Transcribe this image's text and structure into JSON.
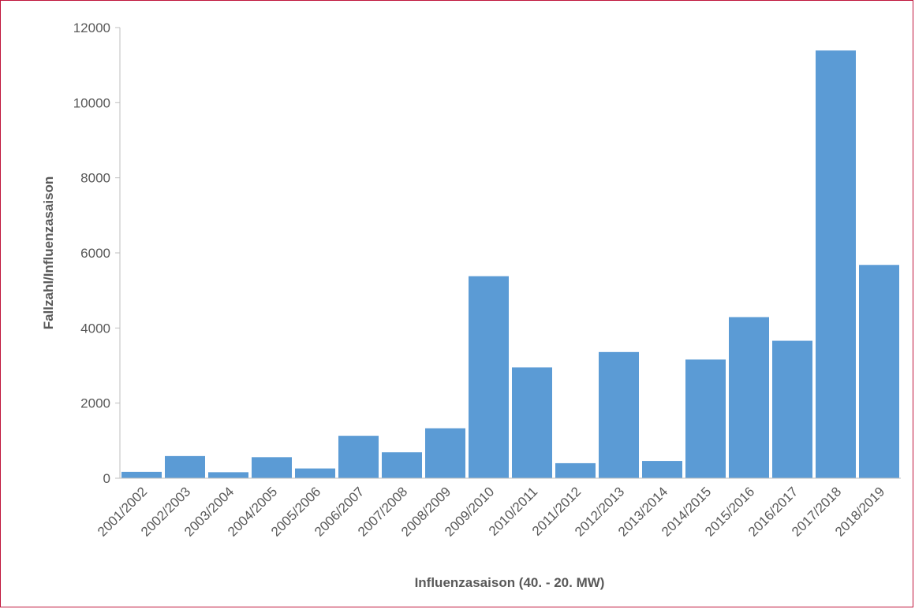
{
  "chart_data": {
    "type": "bar",
    "title": "",
    "xlabel": "Influenzasaison (40. - 20. MW)",
    "ylabel": "Fallzahl/Influenzasaison",
    "ylim": [
      0,
      12000
    ],
    "yticks": [
      0,
      2000,
      4000,
      6000,
      8000,
      10000,
      12000
    ],
    "grid": false,
    "legend": "none",
    "bar_color": "#5b9bd5",
    "categories": [
      "2001/2002",
      "2002/2003",
      "2003/2004",
      "2004/2005",
      "2005/2006",
      "2006/2007",
      "2007/2008",
      "2008/2009",
      "2009/2010",
      "2010/2011",
      "2011/2012",
      "2012/2013",
      "2013/2014",
      "2014/2015",
      "2015/2016",
      "2016/2017",
      "2017/2018",
      "2018/2019"
    ],
    "values": [
      170,
      590,
      160,
      560,
      260,
      1130,
      690,
      1330,
      5380,
      2950,
      400,
      3360,
      460,
      3160,
      4290,
      3660,
      11390,
      5680
    ]
  },
  "colors": {
    "frame_border": "#c0163c",
    "axis": "#bfbfbf",
    "text": "#595959"
  }
}
